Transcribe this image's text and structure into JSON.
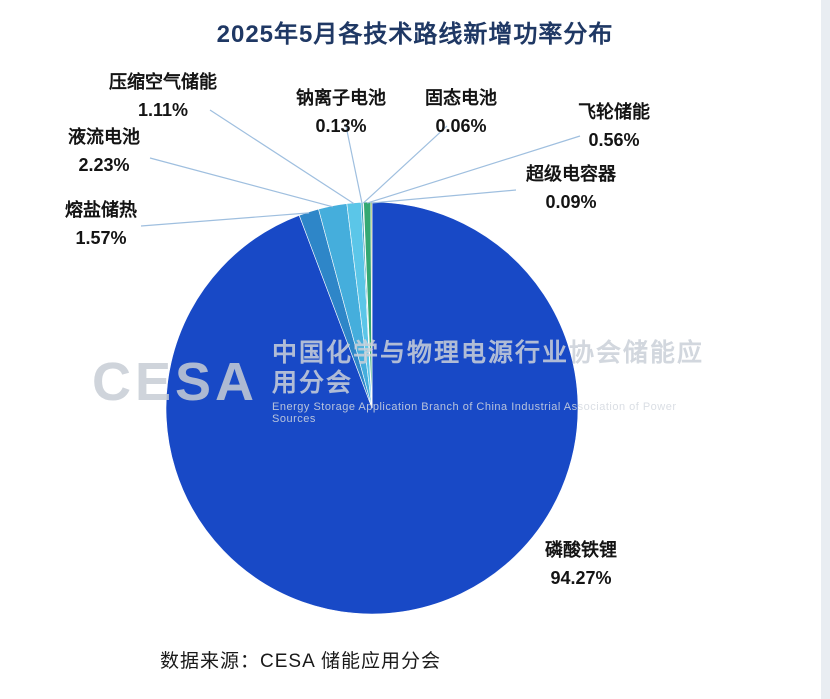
{
  "page": {
    "title": "2025年5月各技术路线新增功率分布",
    "source": "数据来源：CESA 储能应用分会"
  },
  "watermark": {
    "logo": "CESA",
    "cn": "中国化学与物理电源行业协会储能应用分会",
    "en": "Energy Storage Application Branch of China Industrial Association of Power Sources"
  },
  "chart_data": {
    "type": "pie",
    "title": "2025年5月各技术路线新增功率分布",
    "categories": [
      "磷酸铁锂",
      "熔盐储热",
      "液流电池",
      "压缩空气储能",
      "钠离子电池",
      "固态电池",
      "飞轮储能",
      "超级电容器"
    ],
    "values": [
      94.27,
      1.57,
      2.23,
      1.11,
      0.13,
      0.06,
      0.56,
      0.09
    ],
    "labels": [
      "94.27%",
      "1.57%",
      "2.23%",
      "1.11%",
      "0.13%",
      "0.06%",
      "0.56%",
      "0.09%"
    ],
    "colors": [
      "#1849C6",
      "#2E86C8",
      "#45AEDC",
      "#5BC6E8",
      "#1F8FAE",
      "#9AD6E0",
      "#34A873",
      "#8FAF3C"
    ],
    "start_angle_deg": 0,
    "direction": "clockwise",
    "legend_position": "none",
    "leader_line_color": "#9FBFDF",
    "label_style": "outside-with-leader-lines"
  }
}
